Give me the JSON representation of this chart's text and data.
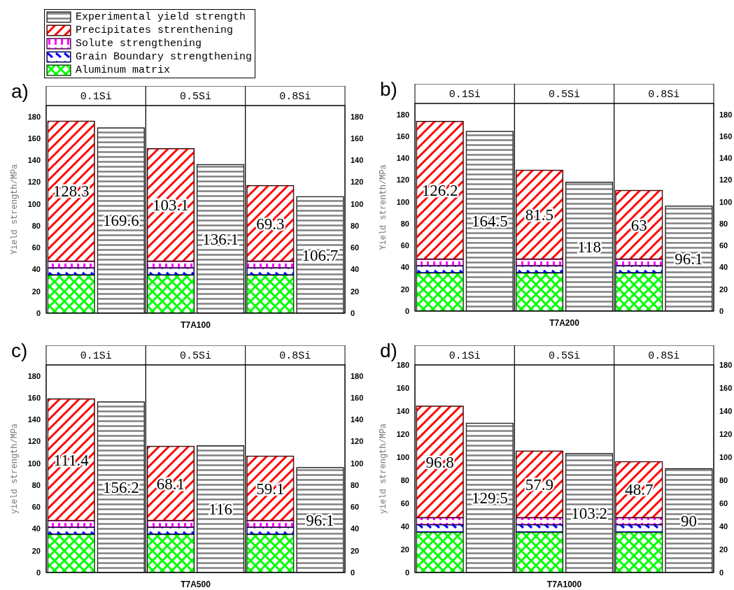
{
  "chart_data": [
    {
      "type": "bar",
      "title": "a)",
      "xlabel": "T7A100",
      "ylabel": "Yield strength/MPa",
      "categories": [
        "0.1Si",
        null,
        "0.5Si",
        null,
        "0.8Si",
        null
      ],
      "stacked": true,
      "legend": "top left",
      "ylim": [
        0,
        190
      ],
      "yticks": [
        0,
        20,
        40,
        60,
        80,
        100,
        120,
        140,
        160,
        180
      ],
      "y2lim": [
        0,
        190
      ],
      "y2ticks": [
        0,
        20,
        40,
        60,
        80,
        100,
        120,
        140,
        160,
        180
      ],
      "series": [
        {
          "name": "Aluminum matrix",
          "color": "#00ff00",
          "values": [
            35,
            null,
            35,
            null,
            35,
            null
          ]
        },
        {
          "name": "Grain Boundary strengthening",
          "color": "#0000ff",
          "values": [
            6.5,
            null,
            6.5,
            null,
            6.5,
            null
          ]
        },
        {
          "name": "Solute strengthening",
          "color": "#ff00ff",
          "values": [
            6,
            null,
            6,
            null,
            6,
            null
          ]
        },
        {
          "name": "Precipitates strenthening",
          "color": "#ff0000",
          "values": [
            128.3,
            null,
            103.1,
            null,
            69.3,
            null
          ],
          "value_labels": [
            "128.3",
            null,
            "103.1",
            null,
            "69.3",
            null
          ]
        },
        {
          "name": "Experimental yield strength",
          "color": "#808080",
          "values": [
            null,
            169.6,
            null,
            136.1,
            null,
            106.7
          ],
          "value_labels": [
            null,
            "169.6",
            null,
            "136.1",
            null,
            "106.7"
          ]
        }
      ]
    },
    {
      "type": "bar",
      "title": "b)",
      "xlabel": "T7A200",
      "ylabel": "Yield strenth/MPa",
      "categories": [
        "0.1Si",
        null,
        "0.5Si",
        null,
        "0.8Si",
        null
      ],
      "stacked": true,
      "ylim": [
        0,
        190
      ],
      "yticks": [
        0,
        20,
        40,
        60,
        80,
        100,
        120,
        140,
        160,
        180
      ],
      "y2lim": [
        0,
        190
      ],
      "y2ticks": [
        0,
        20,
        40,
        60,
        80,
        100,
        120,
        140,
        160,
        180
      ],
      "series": [
        {
          "color": "#00ff00",
          "values": [
            35,
            null,
            35,
            null,
            35,
            null
          ]
        },
        {
          "color": "#0000ff",
          "values": [
            6.5,
            null,
            6.5,
            null,
            6.5,
            null
          ]
        },
        {
          "color": "#ff00ff",
          "values": [
            6,
            null,
            6,
            null,
            6,
            null
          ]
        },
        {
          "color": "#ff0000",
          "values": [
            126.2,
            null,
            81.5,
            null,
            63,
            null
          ],
          "value_labels": [
            "126.2",
            null,
            "81.5",
            null,
            "63",
            null
          ]
        },
        {
          "color": "#808080",
          "values": [
            null,
            164.5,
            null,
            118,
            null,
            96.1
          ],
          "value_labels": [
            null,
            "164.5",
            null,
            "118",
            null,
            "96.1"
          ]
        }
      ]
    },
    {
      "type": "bar",
      "title": "c)",
      "xlabel": "T7A500",
      "ylabel": "yield strength/MPa",
      "categories": [
        "0.1Si",
        null,
        "0.5Si",
        null,
        "0.8Si",
        null
      ],
      "stacked": true,
      "ylim": [
        0,
        190
      ],
      "yticks": [
        0,
        20,
        40,
        60,
        80,
        100,
        120,
        140,
        160,
        180
      ],
      "y2lim": [
        0,
        190
      ],
      "y2ticks": [
        0,
        20,
        40,
        60,
        80,
        100,
        120,
        140,
        160,
        180
      ],
      "series": [
        {
          "color": "#00ff00",
          "values": [
            35,
            null,
            35,
            null,
            35,
            null
          ]
        },
        {
          "color": "#0000ff",
          "values": [
            6.5,
            null,
            6.5,
            null,
            6.5,
            null
          ]
        },
        {
          "color": "#ff00ff",
          "values": [
            6,
            null,
            6,
            null,
            6,
            null
          ]
        },
        {
          "color": "#ff0000",
          "values": [
            111.4,
            null,
            68.1,
            null,
            59.1,
            null
          ],
          "value_labels": [
            "111.4",
            null,
            "68.1",
            null,
            "59.1",
            null
          ]
        },
        {
          "color": "#808080",
          "values": [
            null,
            156.2,
            null,
            116,
            null,
            96.1
          ],
          "value_labels": [
            null,
            "156.2",
            null,
            "116",
            null,
            "96.1"
          ]
        }
      ]
    },
    {
      "type": "bar",
      "title": "d)",
      "xlabel": "T7A1000",
      "ylabel": "yield strength/MPa",
      "categories": [
        "0.1Si",
        null,
        "0.5Si",
        null,
        "0.8Si",
        null
      ],
      "stacked": true,
      "ylim": [
        0,
        180
      ],
      "yticks": [
        0,
        20,
        40,
        60,
        80,
        100,
        120,
        140,
        160,
        180
      ],
      "y2lim": [
        0,
        180
      ],
      "y2ticks": [
        0,
        20,
        40,
        60,
        80,
        100,
        120,
        140,
        160,
        180
      ],
      "series": [
        {
          "color": "#00ff00",
          "values": [
            35,
            null,
            35,
            null,
            35,
            null
          ]
        },
        {
          "color": "#0000ff",
          "values": [
            6.5,
            null,
            6.5,
            null,
            6.5,
            null
          ]
        },
        {
          "color": "#ff00ff",
          "values": [
            6,
            null,
            6,
            null,
            6,
            null
          ]
        },
        {
          "color": "#ff0000",
          "values": [
            96.8,
            null,
            57.9,
            null,
            48.7,
            null
          ],
          "value_labels": [
            "96.8",
            null,
            "57.9",
            null,
            "48.7",
            null
          ]
        },
        {
          "color": "#808080",
          "values": [
            null,
            129.5,
            null,
            103.2,
            null,
            90
          ],
          "value_labels": [
            null,
            "129.5",
            null,
            "103.2",
            null,
            "90"
          ]
        }
      ]
    }
  ]
}
